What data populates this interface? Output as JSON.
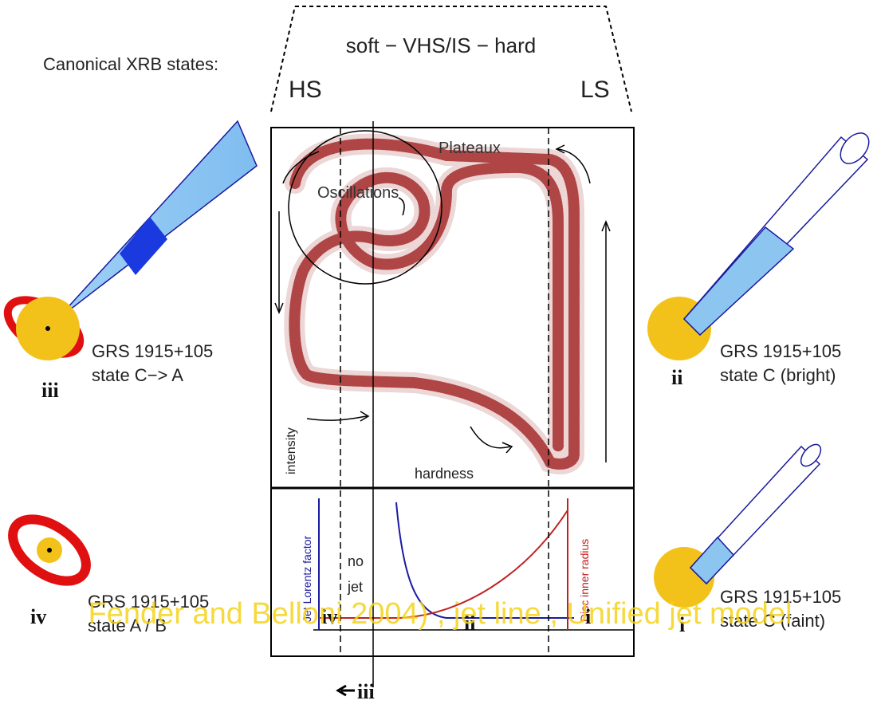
{
  "header": {
    "caption": "Canonical XRB states:",
    "sequence": "soft − VHS/IS − hard",
    "left_state": "HS",
    "right_state": "LS"
  },
  "hid": {
    "plateaux": "Plateaux",
    "oscillations": "Oscillations",
    "y_label": "intensity",
    "x_label": "hardness"
  },
  "lower_panel": {
    "left_label": "Jet Lorentz factor",
    "right_label": "Disc inner radius",
    "no_jet": [
      "no",
      "jet"
    ]
  },
  "states": [
    {
      "numeral": "iii",
      "name": "GRS 1915+105",
      "desc": "state C−> A"
    },
    {
      "numeral": "ii",
      "name": "GRS 1915+105",
      "desc": "state C (bright)"
    },
    {
      "numeral": "iv",
      "name": "GRS 1915+105",
      "desc": "state A / B"
    },
    {
      "numeral": "i",
      "name": "GRS 1915+105",
      "desc": "state C (faint)"
    }
  ],
  "bottom_labels": {
    "iv": "iv",
    "ii": "ii",
    "i": "i",
    "iii": "iii"
  },
  "watermark": "Fender and Belloni 2004) , jet line , Unified jet model"
}
